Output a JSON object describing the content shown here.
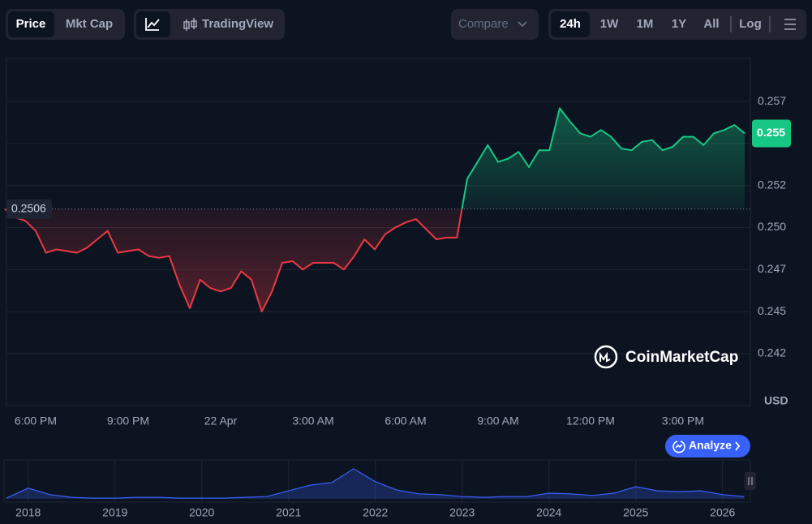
{
  "toolbar": {
    "price": "Price",
    "mkt_cap": "Mkt Cap",
    "tradingview": "TradingView",
    "compare": "Compare",
    "ranges": [
      "24h",
      "1W",
      "1M",
      "1Y",
      "All"
    ],
    "log": "Log"
  },
  "watermark": "CoinMarketCap",
  "analyze": "Analyze",
  "currency": "USD",
  "chart_data": [
    {
      "type": "line",
      "categories": [
        null,
        null,
        null,
        "6:00 PM",
        null,
        null,
        null,
        null,
        null,
        null,
        null,
        null,
        "9:00 PM",
        null,
        null,
        null,
        null,
        null,
        null,
        null,
        null,
        "22 Apr",
        null,
        null,
        null,
        null,
        null,
        null,
        null,
        null,
        "3:00 AM",
        null,
        null,
        null,
        null,
        null,
        null,
        null,
        null,
        "6:00 AM",
        null,
        null,
        null,
        null,
        null,
        null,
        null,
        null,
        "9:00 AM",
        null,
        null,
        null,
        null,
        null,
        null,
        null,
        null,
        "12:00 PM",
        null,
        null,
        null,
        null,
        null,
        null,
        null,
        null,
        "3:00 PM",
        null,
        null,
        null,
        null,
        null,
        null
      ],
      "values": [
        0.2506,
        0.2501,
        0.2499,
        0.2493,
        0.248,
        0.2482,
        0.2481,
        0.248,
        0.2483,
        0.2488,
        0.2493,
        0.248,
        0.2481,
        0.2482,
        0.2478,
        0.2477,
        0.2478,
        0.2461,
        0.2447,
        0.2464,
        0.2459,
        0.2457,
        0.2459,
        0.2469,
        0.2464,
        0.2445,
        0.2457,
        0.2474,
        0.2475,
        0.247,
        0.2474,
        0.2474,
        0.2474,
        0.247,
        0.2478,
        0.2488,
        0.2482,
        0.2491,
        0.2495,
        0.2498,
        0.25,
        0.2494,
        0.2488,
        0.2489,
        0.2489,
        0.2524,
        0.2534,
        0.2544,
        0.2534,
        0.2536,
        0.254,
        0.2531,
        0.2541,
        0.2541,
        0.2566,
        0.2558,
        0.2551,
        0.2549,
        0.2553,
        0.2549,
        0.2542,
        0.2541,
        0.2546,
        0.2547,
        0.2541,
        0.2543,
        0.2549,
        0.2549,
        0.2544,
        0.2551,
        0.2553,
        0.2556,
        0.2551
      ],
      "baseline": {
        "value": 0.2506,
        "label": "0.2506"
      },
      "last_price_label": "0.255",
      "up_color": "#16c784",
      "down_color": "#ea3943",
      "ylim": [
        0.23891,
        0.25956
      ],
      "yticks": [
        {
          "value": 0.257,
          "label": "0.257"
        },
        {
          "value": 0.2545,
          "label": "0.255"
        },
        {
          "value": 0.252,
          "label": "0.252"
        },
        {
          "value": 0.2495,
          "label": "0.250"
        },
        {
          "value": 0.247,
          "label": "0.247"
        },
        {
          "value": 0.2445,
          "label": "0.245"
        },
        {
          "value": 0.242,
          "label": "0.242"
        }
      ],
      "grid": true
    },
    {
      "type": "area",
      "x": [
        2017.75,
        2018,
        2018.25,
        2018.5,
        2018.75,
        2019,
        2019.25,
        2019.5,
        2019.75,
        2020,
        2020.25,
        2020.5,
        2020.75,
        2021,
        2021.25,
        2021.5,
        2021.75,
        2022,
        2022.25,
        2022.5,
        2022.75,
        2023,
        2023.25,
        2023.5,
        2023.75,
        2024,
        2024.25,
        2024.5,
        2024.75,
        2025,
        2025.25,
        2025.5,
        2025.75,
        2026,
        2026.25
      ],
      "values": [
        0.02,
        0.28,
        0.11,
        0.04,
        0.02,
        0.02,
        0.04,
        0.04,
        0.02,
        0.02,
        0.02,
        0.04,
        0.06,
        0.21,
        0.36,
        0.43,
        0.79,
        0.45,
        0.23,
        0.13,
        0.11,
        0.06,
        0.04,
        0.06,
        0.06,
        0.15,
        0.13,
        0.09,
        0.15,
        0.32,
        0.21,
        0.19,
        0.21,
        0.11,
        0.06
      ],
      "color": "#3861fb",
      "xlim": [
        2017.75,
        2026.32
      ],
      "xticks": [
        2018,
        2019,
        2020,
        2021,
        2022,
        2023,
        2024,
        2025,
        2026
      ],
      "ylim": [
        0,
        1
      ]
    }
  ]
}
